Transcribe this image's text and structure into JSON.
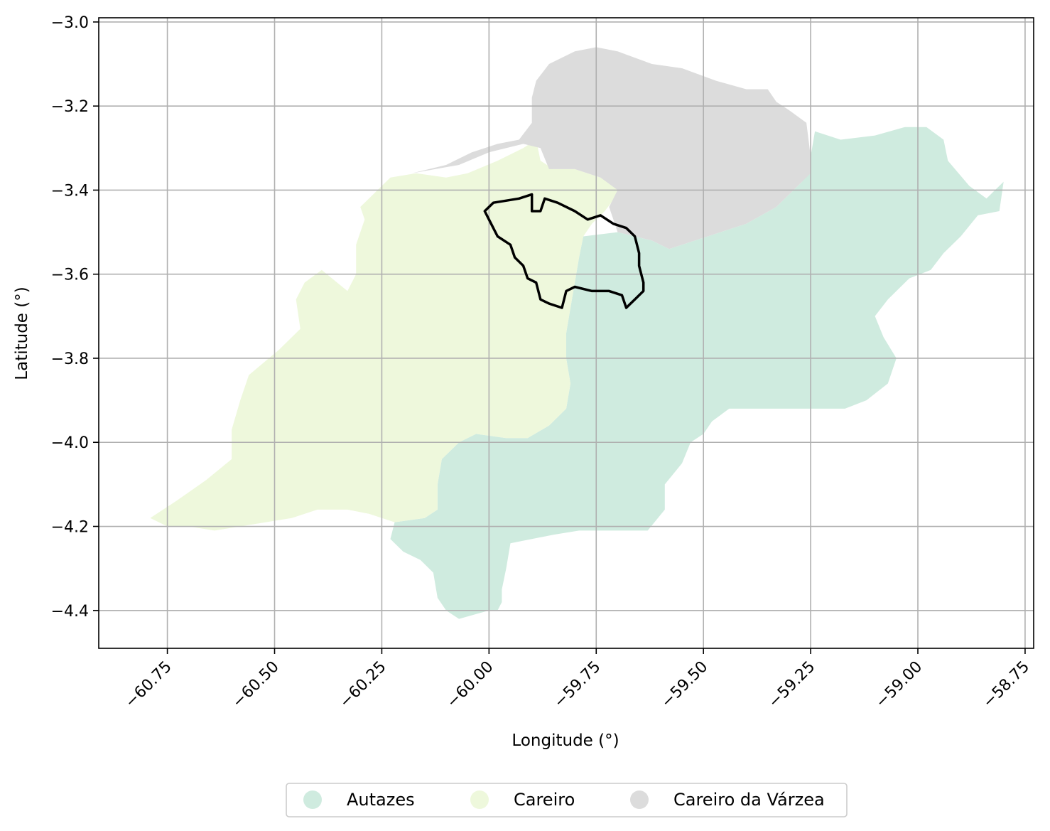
{
  "chart_data": {
    "type": "map",
    "xlabel": "Longitude (°)",
    "ylabel": "Latitude (°)",
    "xlim": [
      -60.91,
      -58.73
    ],
    "ylim": [
      -4.49,
      -2.99
    ],
    "grid": true,
    "x_ticks": [
      -60.75,
      -60.5,
      -60.25,
      -60.0,
      -59.75,
      -59.5,
      -59.25,
      -59.0,
      -58.75
    ],
    "x_tick_labels": [
      "−60.75",
      "−60.50",
      "−60.25",
      "−60.00",
      "−59.75",
      "−59.50",
      "−59.25",
      "−59.00",
      "−58.75"
    ],
    "y_ticks": [
      -3.0,
      -3.2,
      -3.4,
      -3.6,
      -3.8,
      -4.0,
      -4.2,
      -4.4
    ],
    "y_tick_labels": [
      "−3.0",
      "−3.2",
      "−3.4",
      "−3.6",
      "−3.8",
      "−4.0",
      "−4.2",
      "−4.4"
    ],
    "legend_position": "bottom-center",
    "regions": [
      {
        "name": "Autazes",
        "color": "#cfebdf",
        "coords": [
          [
            -59.78,
            -3.51
          ],
          [
            -59.7,
            -3.5
          ],
          [
            -59.62,
            -3.52
          ],
          [
            -59.58,
            -3.54
          ],
          [
            -59.52,
            -3.52
          ],
          [
            -59.46,
            -3.5
          ],
          [
            -59.4,
            -3.48
          ],
          [
            -59.33,
            -3.44
          ],
          [
            -59.27,
            -3.38
          ],
          [
            -59.25,
            -3.32
          ],
          [
            -59.24,
            -3.26
          ],
          [
            -59.18,
            -3.28
          ],
          [
            -59.1,
            -3.27
          ],
          [
            -59.03,
            -3.25
          ],
          [
            -58.98,
            -3.25
          ],
          [
            -58.94,
            -3.28
          ],
          [
            -58.93,
            -3.33
          ],
          [
            -58.88,
            -3.39
          ],
          [
            -58.84,
            -3.42
          ],
          [
            -58.8,
            -3.38
          ],
          [
            -58.81,
            -3.45
          ],
          [
            -58.86,
            -3.46
          ],
          [
            -58.9,
            -3.51
          ],
          [
            -58.94,
            -3.55
          ],
          [
            -58.97,
            -3.59
          ],
          [
            -59.02,
            -3.61
          ],
          [
            -59.07,
            -3.66
          ],
          [
            -59.1,
            -3.7
          ],
          [
            -59.08,
            -3.75
          ],
          [
            -59.05,
            -3.8
          ],
          [
            -59.07,
            -3.86
          ],
          [
            -59.12,
            -3.9
          ],
          [
            -59.17,
            -3.92
          ],
          [
            -59.28,
            -3.92
          ],
          [
            -59.35,
            -3.92
          ],
          [
            -59.44,
            -3.92
          ],
          [
            -59.48,
            -3.95
          ],
          [
            -59.5,
            -3.98
          ],
          [
            -59.53,
            -4.0
          ],
          [
            -59.55,
            -4.05
          ],
          [
            -59.59,
            -4.1
          ],
          [
            -59.59,
            -4.16
          ],
          [
            -59.63,
            -4.21
          ],
          [
            -59.7,
            -4.21
          ],
          [
            -59.79,
            -4.21
          ],
          [
            -59.85,
            -4.22
          ],
          [
            -59.95,
            -4.24
          ],
          [
            -59.96,
            -4.3
          ],
          [
            -59.97,
            -4.35
          ],
          [
            -59.97,
            -4.38
          ],
          [
            -59.98,
            -4.4
          ],
          [
            -60.0,
            -4.4
          ],
          [
            -60.07,
            -4.42
          ],
          [
            -60.1,
            -4.4
          ],
          [
            -60.12,
            -4.37
          ],
          [
            -60.13,
            -4.31
          ],
          [
            -60.16,
            -4.28
          ],
          [
            -60.2,
            -4.26
          ],
          [
            -60.23,
            -4.23
          ],
          [
            -60.22,
            -4.19
          ],
          [
            -60.15,
            -4.18
          ],
          [
            -60.12,
            -4.16
          ],
          [
            -60.12,
            -4.1
          ],
          [
            -60.11,
            -4.04
          ],
          [
            -60.07,
            -4.0
          ],
          [
            -60.03,
            -3.98
          ],
          [
            -59.96,
            -3.99
          ],
          [
            -59.91,
            -3.99
          ],
          [
            -59.86,
            -3.96
          ],
          [
            -59.82,
            -3.92
          ],
          [
            -59.81,
            -3.86
          ],
          [
            -59.82,
            -3.8
          ],
          [
            -59.82,
            -3.74
          ],
          [
            -59.81,
            -3.68
          ],
          [
            -59.8,
            -3.62
          ],
          [
            -59.79,
            -3.56
          ]
        ]
      },
      {
        "name": "Careiro",
        "color": "#eef8dc",
        "coords": [
          [
            -60.1,
            -3.37
          ],
          [
            -60.05,
            -3.36
          ],
          [
            -59.98,
            -3.33
          ],
          [
            -59.92,
            -3.3
          ],
          [
            -59.89,
            -3.28
          ],
          [
            -59.88,
            -3.33
          ],
          [
            -59.85,
            -3.35
          ],
          [
            -59.8,
            -3.35
          ],
          [
            -59.74,
            -3.37
          ],
          [
            -59.7,
            -3.38
          ],
          [
            -59.7,
            -3.41
          ],
          [
            -59.73,
            -3.45
          ],
          [
            -59.76,
            -3.48
          ],
          [
            -59.78,
            -3.51
          ],
          [
            -59.79,
            -3.56
          ],
          [
            -59.8,
            -3.62
          ],
          [
            -59.81,
            -3.68
          ],
          [
            -59.82,
            -3.74
          ],
          [
            -59.82,
            -3.8
          ],
          [
            -59.81,
            -3.86
          ],
          [
            -59.82,
            -3.92
          ],
          [
            -59.86,
            -3.96
          ],
          [
            -59.91,
            -3.99
          ],
          [
            -59.96,
            -3.99
          ],
          [
            -60.03,
            -3.98
          ],
          [
            -60.07,
            -4.0
          ],
          [
            -60.11,
            -4.04
          ],
          [
            -60.12,
            -4.1
          ],
          [
            -60.12,
            -4.16
          ],
          [
            -60.15,
            -4.18
          ],
          [
            -60.22,
            -4.19
          ],
          [
            -60.28,
            -4.17
          ],
          [
            -60.33,
            -4.16
          ],
          [
            -60.4,
            -4.16
          ],
          [
            -60.46,
            -4.18
          ],
          [
            -60.52,
            -4.19
          ],
          [
            -60.58,
            -4.2
          ],
          [
            -60.64,
            -4.21
          ],
          [
            -60.7,
            -4.2
          ],
          [
            -60.75,
            -4.2
          ],
          [
            -60.79,
            -4.18
          ],
          [
            -60.73,
            -4.14
          ],
          [
            -60.66,
            -4.09
          ],
          [
            -60.6,
            -4.04
          ],
          [
            -60.6,
            -3.97
          ],
          [
            -60.58,
            -3.9
          ],
          [
            -60.56,
            -3.84
          ],
          [
            -60.49,
            -3.78
          ],
          [
            -60.44,
            -3.73
          ],
          [
            -60.45,
            -3.66
          ],
          [
            -60.43,
            -3.62
          ],
          [
            -60.39,
            -3.59
          ],
          [
            -60.33,
            -3.64
          ],
          [
            -60.31,
            -3.6
          ],
          [
            -60.31,
            -3.53
          ],
          [
            -60.29,
            -3.47
          ],
          [
            -60.3,
            -3.44
          ],
          [
            -60.23,
            -3.37
          ],
          [
            -60.17,
            -3.36
          ]
        ]
      },
      {
        "name": "Careiro da Várzea",
        "color": "#dcdcdc",
        "coords": [
          [
            -60.18,
            -3.36
          ],
          [
            -60.1,
            -3.34
          ],
          [
            -60.04,
            -3.31
          ],
          [
            -59.98,
            -3.29
          ],
          [
            -59.93,
            -3.28
          ],
          [
            -59.9,
            -3.24
          ],
          [
            -59.9,
            -3.18
          ],
          [
            -59.89,
            -3.14
          ],
          [
            -59.86,
            -3.1
          ],
          [
            -59.8,
            -3.07
          ],
          [
            -59.75,
            -3.06
          ],
          [
            -59.7,
            -3.07
          ],
          [
            -59.62,
            -3.1
          ],
          [
            -59.55,
            -3.11
          ],
          [
            -59.47,
            -3.14
          ],
          [
            -59.4,
            -3.16
          ],
          [
            -59.35,
            -3.16
          ],
          [
            -59.33,
            -3.19
          ],
          [
            -59.3,
            -3.21
          ],
          [
            -59.26,
            -3.24
          ],
          [
            -59.25,
            -3.32
          ],
          [
            -59.25,
            -3.36
          ],
          [
            -59.27,
            -3.38
          ],
          [
            -59.33,
            -3.44
          ],
          [
            -59.4,
            -3.48
          ],
          [
            -59.46,
            -3.5
          ],
          [
            -59.52,
            -3.52
          ],
          [
            -59.58,
            -3.54
          ],
          [
            -59.62,
            -3.52
          ],
          [
            -59.7,
            -3.5
          ],
          [
            -59.72,
            -3.44
          ],
          [
            -59.7,
            -3.4
          ],
          [
            -59.74,
            -3.37
          ],
          [
            -59.8,
            -3.35
          ],
          [
            -59.86,
            -3.35
          ],
          [
            -59.88,
            -3.3
          ],
          [
            -59.92,
            -3.29
          ],
          [
            -60.0,
            -3.31
          ],
          [
            -60.07,
            -3.34
          ]
        ]
      }
    ],
    "outline": {
      "color": "#000000",
      "coords": [
        [
          -60.01,
          -3.45
        ],
        [
          -59.99,
          -3.43
        ],
        [
          -59.93,
          -3.42
        ],
        [
          -59.9,
          -3.41
        ],
        [
          -59.9,
          -3.45
        ],
        [
          -59.88,
          -3.45
        ],
        [
          -59.87,
          -3.42
        ],
        [
          -59.84,
          -3.43
        ],
        [
          -59.8,
          -3.45
        ],
        [
          -59.77,
          -3.47
        ],
        [
          -59.74,
          -3.46
        ],
        [
          -59.71,
          -3.48
        ],
        [
          -59.68,
          -3.49
        ],
        [
          -59.66,
          -3.51
        ],
        [
          -59.65,
          -3.55
        ],
        [
          -59.65,
          -3.58
        ],
        [
          -59.64,
          -3.62
        ],
        [
          -59.64,
          -3.64
        ],
        [
          -59.66,
          -3.66
        ],
        [
          -59.68,
          -3.68
        ],
        [
          -59.69,
          -3.65
        ],
        [
          -59.72,
          -3.64
        ],
        [
          -59.76,
          -3.64
        ],
        [
          -59.8,
          -3.63
        ],
        [
          -59.82,
          -3.64
        ],
        [
          -59.83,
          -3.68
        ],
        [
          -59.86,
          -3.67
        ],
        [
          -59.88,
          -3.66
        ],
        [
          -59.89,
          -3.62
        ],
        [
          -59.91,
          -3.61
        ],
        [
          -59.92,
          -3.58
        ],
        [
          -59.94,
          -3.56
        ],
        [
          -59.95,
          -3.53
        ],
        [
          -59.98,
          -3.51
        ],
        [
          -60.0,
          -3.47
        ]
      ]
    },
    "legend": [
      {
        "label": "Autazes",
        "color": "#cfebdf"
      },
      {
        "label": "Careiro",
        "color": "#eef8dc"
      },
      {
        "label": "Careiro da Várzea",
        "color": "#dcdcdc"
      }
    ]
  }
}
